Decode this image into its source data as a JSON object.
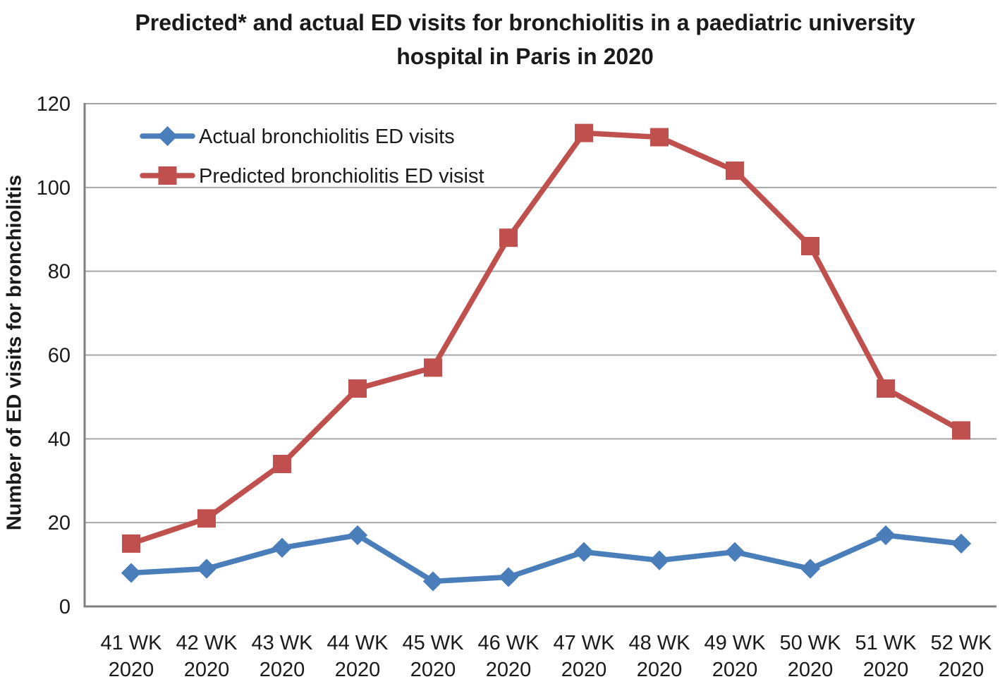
{
  "title": {
    "line1": "Predicted* and actual ED visits for bronchiolitis in a paediatric university",
    "line2": "hospital in Paris in 2020"
  },
  "chart_data": {
    "type": "line",
    "title": "Predicted* and actual ED visits for bronchiolitis in a paediatric university hospital in Paris in 2020",
    "xlabel": "",
    "ylabel": "Number of ED visits for bronchiolitis",
    "ylim": [
      0,
      120
    ],
    "yticks": [
      0,
      20,
      40,
      60,
      80,
      100,
      120
    ],
    "grid": "horizontal",
    "legend_position": "top-left-inside",
    "categories": [
      "41 WK 2020",
      "42 WK 2020",
      "43 WK 2020",
      "44 WK 2020",
      "45 WK 2020",
      "46 WK 2020",
      "47 WK 2020",
      "48 WK 2020",
      "49 WK 2020",
      "50 WK 2020",
      "51 WK 2020",
      "52 WK 2020"
    ],
    "series": [
      {
        "name": "Actual bronchiolitis ED visits",
        "marker": "diamond",
        "color": "#4A7EBB",
        "values": [
          8,
          9,
          14,
          17,
          6,
          7,
          13,
          11,
          13,
          9,
          17,
          15
        ]
      },
      {
        "name": "Predicted bronchiolitis ED visist",
        "marker": "square",
        "color": "#C0504D",
        "values": [
          15,
          21,
          34,
          52,
          57,
          88,
          113,
          112,
          104,
          86,
          52,
          42
        ]
      }
    ]
  },
  "colors": {
    "gridline": "#A6A6A6",
    "axis": "#808080",
    "text": "#1A1A1A",
    "background": "#FFFFFF"
  }
}
